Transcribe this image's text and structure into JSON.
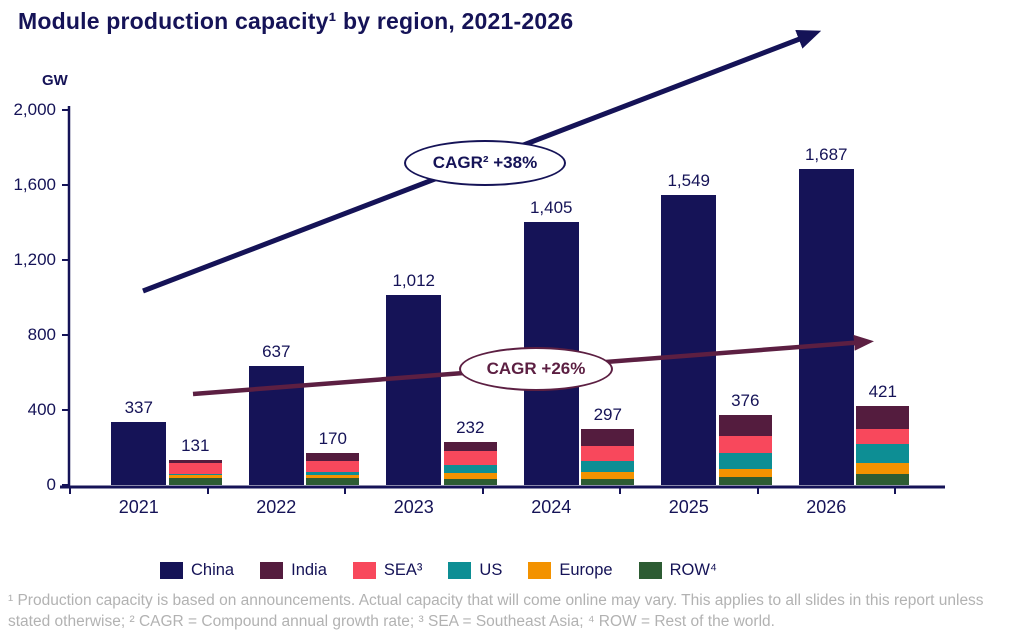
{
  "colors": {
    "navy": "#151357",
    "maroon": "#5c1f42",
    "footnote_gray": "#b2b2b2",
    "background": "#ffffff"
  },
  "chart_data": {
    "type": "bar",
    "title": "Module production capacity¹ by region, 2021-2026",
    "y_axis": {
      "unit": "GW",
      "max": 2000,
      "ticks": [
        "0",
        "400",
        "800",
        "1,200",
        "1,600",
        "2,000"
      ],
      "gridlines": false
    },
    "categories": [
      "2021",
      "2022",
      "2023",
      "2024",
      "2025",
      "2026"
    ],
    "china_series": {
      "key": "china",
      "name": "China",
      "color": "#151357",
      "values": [
        337,
        637,
        1012,
        1405,
        1549,
        1687
      ],
      "value_labels": [
        "337",
        "637",
        "1,012",
        "1,405",
        "1,549",
        "1,687"
      ]
    },
    "stack_totals": [
      131,
      170,
      232,
      297,
      376,
      421
    ],
    "stack_total_labels": [
      "131",
      "170",
      "232",
      "297",
      "376",
      "421"
    ],
    "stack_series": [
      {
        "key": "row",
        "name": "ROW⁴",
        "color": "#2d5c33",
        "values": [
          39,
          36,
          32,
          33,
          41,
          60
        ]
      },
      {
        "key": "europe",
        "name": "Europe",
        "color": "#f39200",
        "values": [
          14,
          16,
          33,
          36,
          45,
          55
        ]
      },
      {
        "key": "us",
        "name": "US",
        "color": "#0d8e94",
        "values": [
          7,
          16,
          43,
          59,
          83,
          102
        ]
      },
      {
        "key": "sea",
        "name": "SEA³",
        "color": "#f8485c",
        "values": [
          57,
          59,
          71,
          80,
          94,
          83
        ]
      },
      {
        "key": "india",
        "name": "India",
        "color": "#541c3e",
        "values": [
          14,
          43,
          53,
          89,
          113,
          121
        ]
      }
    ],
    "annotations": [
      {
        "text": "CAGR² +38%",
        "color": "#151357",
        "applies_to": "China"
      },
      {
        "text": "CAGR +26%",
        "color": "#5c1f42",
        "applies_to": "Non-China regions"
      }
    ],
    "legend": [
      {
        "key": "china",
        "label": "China",
        "color": "#151357"
      },
      {
        "key": "india",
        "label": "India",
        "color": "#541c3e"
      },
      {
        "key": "sea",
        "label": "SEA³",
        "color": "#f8485c"
      },
      {
        "key": "us",
        "label": "US",
        "color": "#0d8e94"
      },
      {
        "key": "europe",
        "label": "Europe",
        "color": "#f39200"
      },
      {
        "key": "row",
        "label": "ROW⁴",
        "color": "#2d5c33"
      }
    ],
    "footnote": "¹ Production capacity is based on announcements. Actual capacity that will come online may vary. This applies to all slides in this report unless stated otherwise; ² CAGR = Compound annual growth rate; ³ SEA = Southeast Asia; ⁴ ROW = Rest of the world."
  }
}
